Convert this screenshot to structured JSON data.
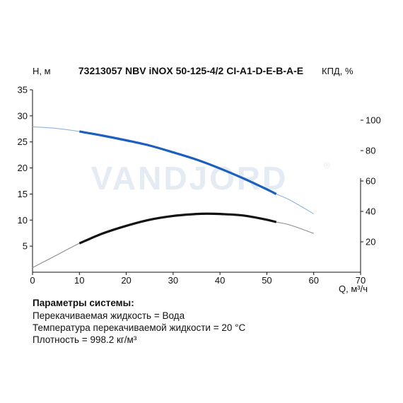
{
  "chart_data": {
    "type": "line",
    "title": "73213057 NBV iNOX 50-125-4/2 CI-A1-D-E-B-A-E",
    "xlabel": "Q, м³/ч",
    "ylabel": "H, м",
    "y2label": "КПД, %",
    "xlim": [
      0,
      70
    ],
    "ylim": [
      0,
      35
    ],
    "y2lim": [
      0,
      120
    ],
    "x_ticks": [
      "0",
      "10",
      "20",
      "30",
      "40",
      "50",
      "60",
      "70"
    ],
    "y_ticks": [
      "5",
      "10",
      "15",
      "20",
      "25",
      "30",
      "35"
    ],
    "y2_ticks": [
      "20",
      "40",
      "60",
      "80",
      "100"
    ],
    "grid": false,
    "watermark": "VANDJORD",
    "series": [
      {
        "axis": "left",
        "color": "#1d5fbf",
        "x": [
          0,
          5,
          10,
          15,
          20,
          25,
          30,
          35,
          40,
          45,
          50,
          52,
          55,
          60
        ],
        "y": [
          27.9,
          27.6,
          27.0,
          26.2,
          25.3,
          24.3,
          23.0,
          21.6,
          19.9,
          18.0,
          15.9,
          15.0,
          13.8,
          11.2
        ],
        "operating_range": [
          10,
          52
        ]
      },
      {
        "axis": "right",
        "color": "#111111",
        "x": [
          0,
          5,
          10,
          15,
          20,
          25,
          30,
          35,
          37.5,
          40,
          45,
          50,
          52,
          55,
          60
        ],
        "y": [
          3,
          11,
          19,
          25.5,
          30.5,
          34.5,
          37,
          38.3,
          38.5,
          38.3,
          37.3,
          34.5,
          33,
          31,
          25.5
        ],
        "operating_range": [
          10,
          52
        ]
      }
    ]
  },
  "system_params": {
    "title": "Параметры системы:",
    "lines": [
      "Перекачиваемая жидкость = Вода",
      "Температура перекачиваемой жидкости = 20 °C",
      "Плотность = 998.2 кг/м³"
    ]
  }
}
